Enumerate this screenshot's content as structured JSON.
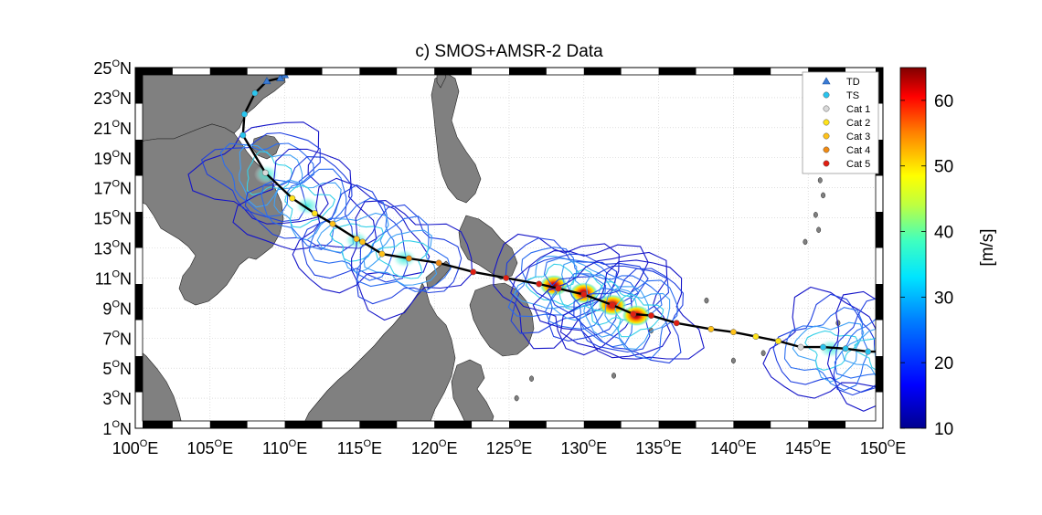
{
  "title": "c) SMOS+AMSR-2 Data",
  "x_ticks": [
    "100",
    "105",
    "110",
    "115",
    "120",
    "125",
    "130",
    "135",
    "140",
    "145",
    "150"
  ],
  "x_suffix": "E",
  "y_ticks": [
    "1",
    "3",
    "5",
    "7",
    "9",
    "11",
    "13",
    "15",
    "17",
    "19",
    "21",
    "23",
    "25"
  ],
  "y_suffix": "N",
  "degree_sign": "O",
  "legend": [
    {
      "label": "TD",
      "color": "#3a7bd5",
      "marker": "triangle"
    },
    {
      "label": "TS",
      "color": "#29c4ee",
      "marker": "circle"
    },
    {
      "label": "Cat 1",
      "color": "#d9d9d9",
      "marker": "circle"
    },
    {
      "label": "Cat 2",
      "color": "#ffe31a",
      "marker": "circle"
    },
    {
      "label": "Cat 3",
      "color": "#ffc21a",
      "marker": "circle"
    },
    {
      "label": "Cat 4",
      "color": "#f08a12",
      "marker": "circle"
    },
    {
      "label": "Cat 5",
      "color": "#e01e12",
      "marker": "circle"
    }
  ],
  "colorbar": {
    "label": "[m/s]",
    "min": 10,
    "max": 65,
    "ticks": [
      "10",
      "20",
      "30",
      "40",
      "50",
      "60"
    ],
    "tick_values": [
      10,
      20,
      30,
      40,
      50,
      60
    ]
  },
  "extent": {
    "lon": [
      100,
      150
    ],
    "lat": [
      1,
      25
    ]
  },
  "track": [
    {
      "lon": 150.3,
      "lat": 6.1,
      "cat": "TS"
    },
    {
      "lon": 149.0,
      "lat": 6.1,
      "cat": "TS"
    },
    {
      "lon": 147.5,
      "lat": 6.3,
      "cat": "TS"
    },
    {
      "lon": 146.0,
      "lat": 6.4,
      "cat": "TS"
    },
    {
      "lon": 144.5,
      "lat": 6.4,
      "cat": "Cat 1"
    },
    {
      "lon": 143.0,
      "lat": 6.8,
      "cat": "Cat 2"
    },
    {
      "lon": 141.5,
      "lat": 7.1,
      "cat": "Cat 2"
    },
    {
      "lon": 140.0,
      "lat": 7.4,
      "cat": "Cat 3"
    },
    {
      "lon": 138.5,
      "lat": 7.6,
      "cat": "Cat 3"
    },
    {
      "lon": 136.2,
      "lat": 8.0,
      "cat": "Cat 5"
    },
    {
      "lon": 134.5,
      "lat": 8.5,
      "cat": "Cat 5"
    },
    {
      "lon": 133.3,
      "lat": 8.6,
      "cat": "Cat 5"
    },
    {
      "lon": 131.9,
      "lat": 9.2,
      "cat": "Cat 5"
    },
    {
      "lon": 130.0,
      "lat": 9.9,
      "cat": "Cat 5"
    },
    {
      "lon": 128.3,
      "lat": 10.3,
      "cat": "Cat 5"
    },
    {
      "lon": 127.0,
      "lat": 10.6,
      "cat": "Cat 5"
    },
    {
      "lon": 124.8,
      "lat": 11.0,
      "cat": "Cat 5"
    },
    {
      "lon": 122.6,
      "lat": 11.4,
      "cat": "Cat 5"
    },
    {
      "lon": 120.3,
      "lat": 12.0,
      "cat": "Cat 4"
    },
    {
      "lon": 118.3,
      "lat": 12.3,
      "cat": "Cat 4"
    },
    {
      "lon": 116.5,
      "lat": 12.6,
      "cat": "Cat 3"
    },
    {
      "lon": 115.2,
      "lat": 13.4,
      "cat": "Cat 3"
    },
    {
      "lon": 114.8,
      "lat": 13.6,
      "cat": "Cat 3"
    },
    {
      "lon": 113.2,
      "lat": 14.6,
      "cat": "Cat 3"
    },
    {
      "lon": 112.0,
      "lat": 15.3,
      "cat": "Cat 2"
    },
    {
      "lon": 110.5,
      "lat": 16.3,
      "cat": "Cat 2"
    },
    {
      "lon": 108.7,
      "lat": 18.0,
      "cat": "Cat 1"
    },
    {
      "lon": 107.2,
      "lat": 20.5,
      "cat": "TS"
    },
    {
      "lon": 107.3,
      "lat": 21.9,
      "cat": "TS"
    },
    {
      "lon": 108.0,
      "lat": 23.3,
      "cat": "TS"
    },
    {
      "lon": 108.8,
      "lat": 24.1,
      "cat": "TD"
    },
    {
      "lon": 109.7,
      "lat": 24.3,
      "cat": "TD"
    },
    {
      "lon": 110.0,
      "lat": 24.5,
      "cat": "TD"
    }
  ],
  "storm_snapshots": [
    {
      "lon": 108.8,
      "lat": 17.9,
      "peak": 30
    },
    {
      "lon": 111.5,
      "lat": 15.8,
      "peak": 32
    },
    {
      "lon": 114.8,
      "lat": 13.5,
      "peak": 32
    },
    {
      "lon": 118.0,
      "lat": 12.3,
      "peak": 35
    },
    {
      "lon": 128.0,
      "lat": 10.5,
      "peak": 50
    },
    {
      "lon": 130.0,
      "lat": 10.0,
      "peak": 55
    },
    {
      "lon": 131.9,
      "lat": 9.2,
      "peak": 62
    },
    {
      "lon": 133.5,
      "lat": 8.5,
      "peak": 58
    },
    {
      "lon": 146.5,
      "lat": 6.3,
      "peak": 25
    },
    {
      "lon": 150.0,
      "lat": 6.1,
      "peak": 25
    }
  ]
}
